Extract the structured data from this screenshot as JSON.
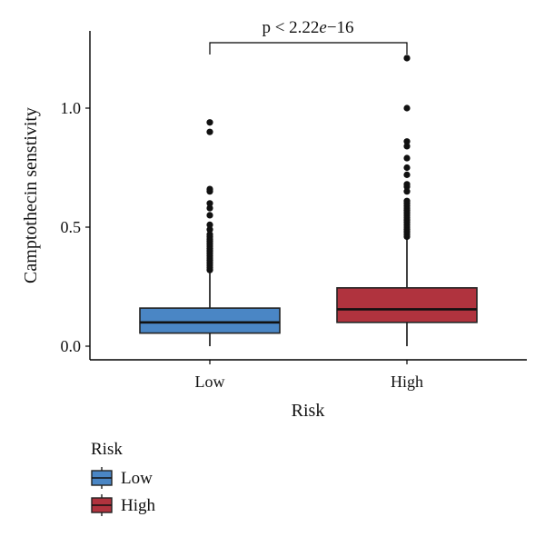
{
  "chart_data": {
    "type": "box",
    "xlabel": "Risk",
    "ylabel": "Camptothecin senstivity",
    "ylim": [
      -0.07,
      1.32
    ],
    "yticks": [
      {
        "value": 0.0,
        "label": "0.0"
      },
      {
        "value": 0.5,
        "label": "0.5"
      },
      {
        "value": 1.0,
        "label": "1.0"
      }
    ],
    "categories": [
      "Low",
      "High"
    ],
    "series": [
      {
        "name": "Low",
        "color": "#4a86c5",
        "q1": 0.055,
        "median": 0.1,
        "q3": 0.16,
        "whisker_low": 0.0,
        "whisker_high": 0.31,
        "outliers": [
          0.32,
          0.33,
          0.34,
          0.35,
          0.36,
          0.37,
          0.38,
          0.39,
          0.4,
          0.41,
          0.42,
          0.43,
          0.44,
          0.45,
          0.46,
          0.47,
          0.49,
          0.51,
          0.55,
          0.58,
          0.6,
          0.65,
          0.66,
          0.9,
          0.94
        ]
      },
      {
        "name": "High",
        "color": "#b0333e",
        "q1": 0.1,
        "median": 0.155,
        "q3": 0.245,
        "whisker_low": 0.0,
        "whisker_high": 0.455,
        "outliers": [
          0.46,
          0.47,
          0.48,
          0.49,
          0.5,
          0.51,
          0.52,
          0.53,
          0.54,
          0.55,
          0.56,
          0.57,
          0.58,
          0.59,
          0.6,
          0.61,
          0.65,
          0.67,
          0.68,
          0.72,
          0.75,
          0.79,
          0.84,
          0.86,
          1.0,
          1.21
        ]
      }
    ],
    "annotation": {
      "text_prefix": "p < 2.22",
      "text_italic": "e",
      "text_suffix": "−16"
    },
    "legend": {
      "title": "Risk",
      "position": "bottom-left",
      "items": [
        "Low",
        "High"
      ]
    },
    "grid": false
  }
}
